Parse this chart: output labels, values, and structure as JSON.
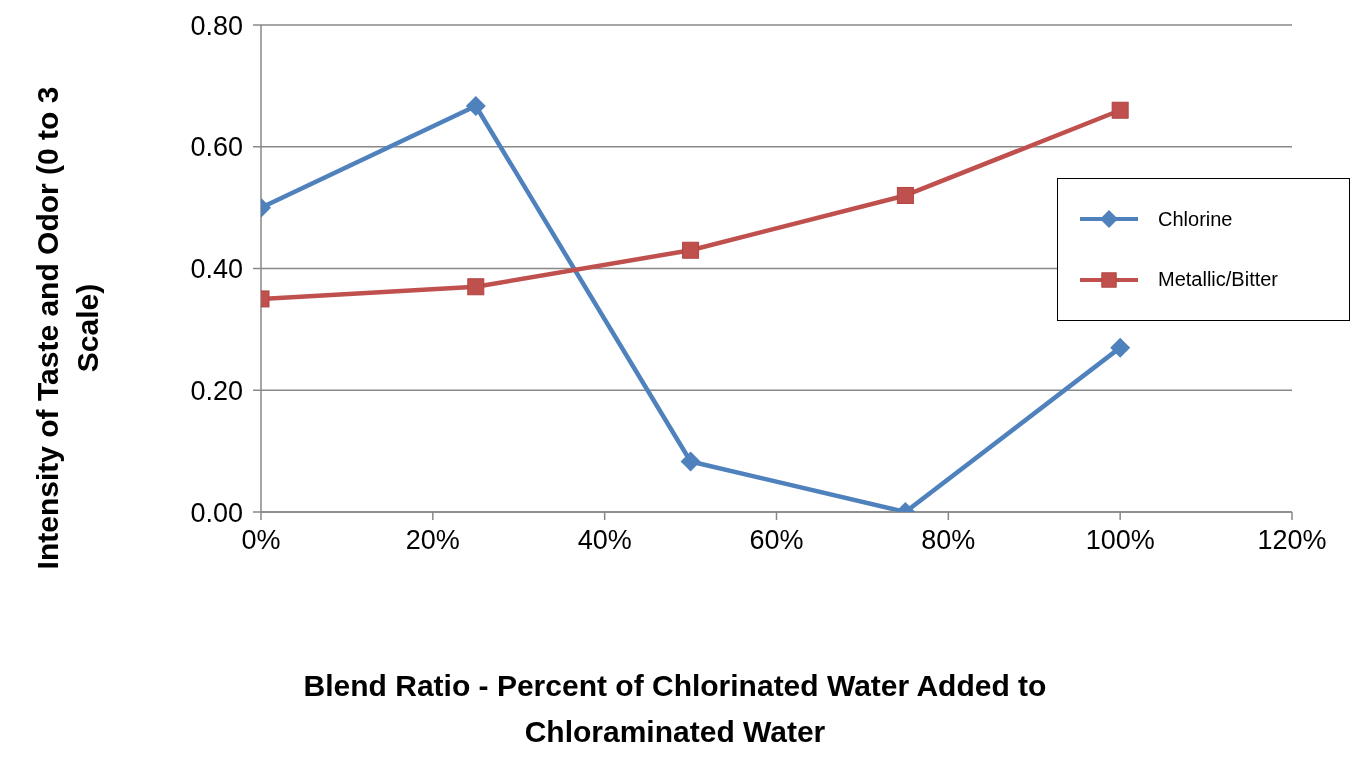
{
  "chart_data": {
    "type": "line",
    "xlabel": "Blend Ratio - Percent of Chlorinated Water Added to Chloraminated Water",
    "ylabel": "Intensity of Taste and Odor (0 to 3 Scale)",
    "x": [
      0,
      25,
      50,
      75,
      100
    ],
    "series": [
      {
        "name": "Chlorine",
        "color": "#4f81bd",
        "marker": "diamond",
        "values": [
          0.5,
          0.667,
          0.083,
          0,
          0.27
        ]
      },
      {
        "name": "Metallic/Bitter",
        "color": "#c0504d",
        "marker": "square",
        "values": [
          0.35,
          0.37,
          0.43,
          0.52,
          0.66
        ]
      }
    ],
    "xlim": [
      0,
      120
    ],
    "xticks": [
      {
        "value": 0,
        "label": "0%"
      },
      {
        "value": 20,
        "label": "20%"
      },
      {
        "value": 40,
        "label": "40%"
      },
      {
        "value": 60,
        "label": "60%"
      },
      {
        "value": 80,
        "label": "80%"
      },
      {
        "value": 100,
        "label": "100%"
      },
      {
        "value": 120,
        "label": "120%"
      }
    ],
    "ylim": [
      0,
      0.8
    ],
    "yticks": [
      {
        "value": 0,
        "label": "0.00"
      },
      {
        "value": 0.2,
        "label": "0.20"
      },
      {
        "value": 0.4,
        "label": "0.40"
      },
      {
        "value": 0.6,
        "label": "0.60"
      },
      {
        "value": 0.8,
        "label": "0.80"
      }
    ],
    "grid": "y",
    "legend": "right"
  }
}
